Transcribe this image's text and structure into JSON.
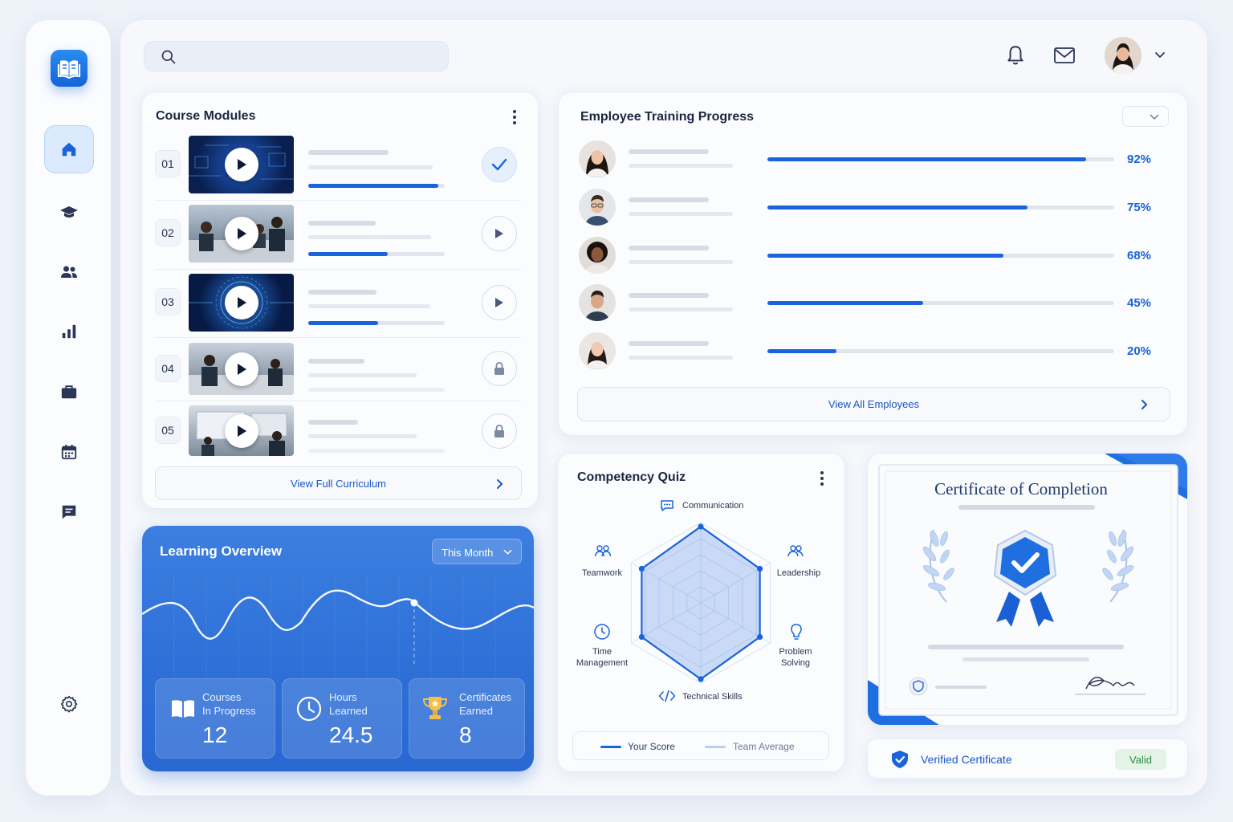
{
  "header": {
    "search": {
      "placeholder": ""
    },
    "icons": [
      "bell-icon",
      "mail-icon",
      "chevron-down-icon"
    ]
  },
  "sidebar": {
    "items": [
      {
        "icon": "home-icon",
        "active": true
      },
      {
        "icon": "graduation-cap-icon",
        "active": false
      },
      {
        "icon": "users-icon",
        "active": false
      },
      {
        "icon": "bar-chart-icon",
        "active": false
      },
      {
        "icon": "briefcase-icon",
        "active": false
      },
      {
        "icon": "calendar-icon",
        "active": false
      },
      {
        "icon": "chat-icon",
        "active": false
      },
      {
        "icon": "settings-icon",
        "active": false
      }
    ]
  },
  "course_modules": {
    "title": "Course Modules",
    "modules": [
      {
        "num": "01",
        "progress": 0.95,
        "status": "completed"
      },
      {
        "num": "02",
        "progress": 0.58,
        "status": "play"
      },
      {
        "num": "03",
        "progress": 0.51,
        "status": "play"
      },
      {
        "num": "04",
        "progress": 0,
        "status": "locked"
      },
      {
        "num": "05",
        "progress": 0,
        "status": "locked"
      }
    ],
    "view_all": "View Full Curriculum"
  },
  "training_progress": {
    "title": "Employee Training Progress",
    "employees": [
      {
        "pct_label": "92%",
        "value": 0.92
      },
      {
        "pct_label": "75%",
        "value": 0.75
      },
      {
        "pct_label": "68%",
        "value": 0.68
      },
      {
        "pct_label": "45%",
        "value": 0.45
      },
      {
        "pct_label": "20%",
        "value": 0.2
      }
    ],
    "view_all": "View All Employees"
  },
  "learning_overview": {
    "title": "Learning Overview",
    "period": "This Month",
    "stats": [
      {
        "label_line1": "Courses",
        "label_line2": "In Progress",
        "value": "12",
        "icon": "book-icon"
      },
      {
        "label_line1": "Hours",
        "label_line2": "Learned",
        "value": "24.5",
        "icon": "clock-icon"
      },
      {
        "label_line1": "Certificates",
        "label_line2": "Earned",
        "value": "8",
        "icon": "trophy-icon"
      }
    ]
  },
  "competency_quiz": {
    "title": "Competency Quiz",
    "axes": [
      {
        "label": "Communication",
        "icon": "chat-bubble-icon"
      },
      {
        "label": "Leadership",
        "icon": "users-icon"
      },
      {
        "label_line1": "Problem",
        "label_line2": "Solving",
        "icon": "lightbulb-icon"
      },
      {
        "label": "Technical Skills",
        "icon": "code-icon"
      },
      {
        "label_line1": "Time",
        "label_line2": "Management",
        "icon": "clock-icon"
      },
      {
        "label": "Teamwork",
        "icon": "team-icon"
      }
    ],
    "your_score": [
      0.95,
      0.85,
      0.85,
      0.95,
      0.85,
      0.85
    ],
    "legend": {
      "yours": "Your Score",
      "team": "Team Average"
    },
    "colors": {
      "yours": "#1a63db",
      "team": "#b9cff2"
    }
  },
  "certificate": {
    "title": "Certificate of Completion",
    "verified_label": "Verified Certificate",
    "status": "Valid"
  }
}
